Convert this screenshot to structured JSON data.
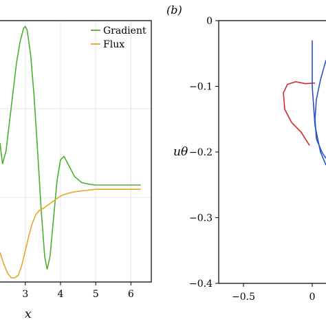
{
  "chart_data": [
    {
      "type": "line",
      "panel_label": "",
      "xlabel": "x",
      "ylabel": "",
      "xlim": [
        2.28,
        6.58
      ],
      "ylim": [
        -1.75,
        1.35
      ],
      "xticks": [
        3,
        4,
        5,
        6
      ],
      "grid": true,
      "legend": "top-right",
      "series": [
        {
          "name": "Gradient",
          "color": "#4daf2e",
          "x": [
            2.28,
            2.35,
            2.45,
            2.55,
            2.65,
            2.75,
            2.85,
            2.95,
            3.0,
            3.05,
            3.15,
            3.25,
            3.35,
            3.45,
            3.55,
            3.62,
            3.7,
            3.8,
            3.9,
            4.0,
            4.1,
            4.25,
            4.4,
            4.6,
            4.8,
            5.0,
            5.5,
            6.0,
            6.28
          ],
          "y": [
            -0.1,
            -0.35,
            -0.2,
            0.15,
            0.5,
            0.85,
            1.1,
            1.26,
            1.28,
            1.24,
            0.95,
            0.45,
            -0.2,
            -0.9,
            -1.45,
            -1.6,
            -1.45,
            -1.0,
            -0.55,
            -0.3,
            -0.26,
            -0.38,
            -0.5,
            -0.57,
            -0.59,
            -0.6,
            -0.6,
            -0.6,
            -0.6
          ]
        },
        {
          "name": "Flux",
          "color": "#e8a628",
          "x": [
            2.28,
            2.4,
            2.5,
            2.6,
            2.7,
            2.8,
            2.9,
            3.0,
            3.1,
            3.2,
            3.3,
            3.4,
            3.5,
            3.6,
            3.7,
            3.8,
            3.9,
            4.0,
            4.2,
            4.4,
            4.6,
            4.8,
            5.0,
            5.5,
            6.0,
            6.28
          ],
          "y": [
            -1.4,
            -1.55,
            -1.65,
            -1.7,
            -1.7,
            -1.67,
            -1.55,
            -1.38,
            -1.2,
            -1.05,
            -0.95,
            -0.9,
            -0.88,
            -0.85,
            -0.82,
            -0.79,
            -0.76,
            -0.73,
            -0.7,
            -0.68,
            -0.67,
            -0.66,
            -0.65,
            -0.65,
            -0.65,
            -0.65
          ]
        }
      ]
    },
    {
      "type": "line",
      "panel_label": "(b)",
      "xlabel": "",
      "ylabel": "uθ",
      "xlim": [
        -0.68,
        0.1
      ],
      "ylim": [
        -0.4,
        0.0
      ],
      "xticks": [
        -0.5,
        0
      ],
      "yticks": [
        0,
        -0.1,
        -0.2,
        -0.3,
        -0.4
      ],
      "grid": false,
      "series": [
        {
          "color": "#d62728",
          "x": [
            0.02,
            -0.05,
            -0.12,
            -0.18,
            -0.21,
            -0.2,
            -0.15,
            -0.08,
            -0.02
          ],
          "y": [
            -0.095,
            -0.096,
            -0.093,
            -0.097,
            -0.11,
            -0.135,
            -0.155,
            -0.17,
            -0.19
          ]
        },
        {
          "color": "#2850c8",
          "x": [
            0.0,
            0.0,
            0.02,
            0.06,
            0.1
          ],
          "y": [
            -0.03,
            -0.1,
            -0.16,
            -0.2,
            -0.22
          ]
        },
        {
          "color": "#2850c8",
          "x": [
            0.1,
            0.06,
            0.03,
            0.02,
            0.03,
            0.07,
            0.1
          ],
          "y": [
            -0.06,
            -0.09,
            -0.12,
            -0.15,
            -0.18,
            -0.2,
            -0.21
          ]
        }
      ]
    }
  ]
}
